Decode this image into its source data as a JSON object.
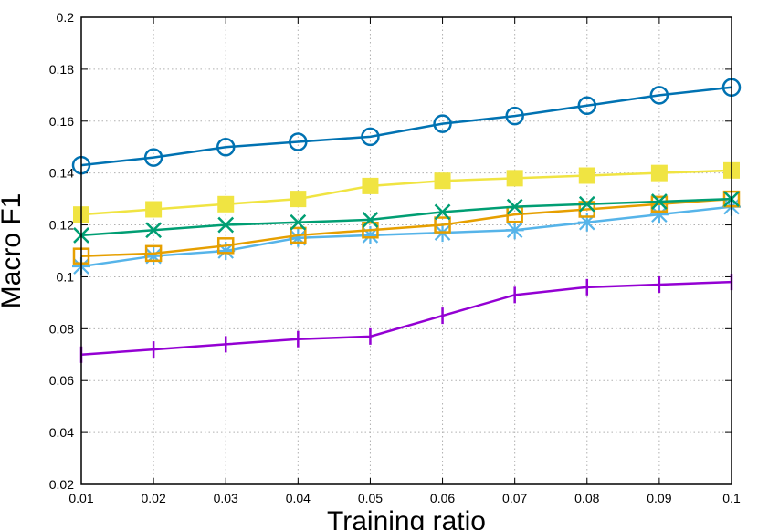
{
  "chart_data": {
    "type": "line",
    "xlabel": "Training ratio",
    "ylabel": "Macro F1",
    "xlim": [
      0.01,
      0.1
    ],
    "ylim": [
      0.02,
      0.2
    ],
    "grid": true,
    "x": [
      0.01,
      0.02,
      0.03,
      0.04,
      0.05,
      0.06,
      0.07,
      0.08,
      0.09,
      0.1
    ],
    "x_tick_labels": [
      "0.01",
      "0.02",
      "0.03",
      "0.04",
      "0.05",
      "0.06",
      "0.07",
      "0.08",
      "0.09",
      "0.1"
    ],
    "y_ticks": [
      0.02,
      0.04,
      0.06,
      0.08,
      0.1,
      0.12,
      0.14,
      0.16,
      0.18,
      0.2
    ],
    "y_tick_labels": [
      "0.02",
      "0.04",
      "0.06",
      "0.08",
      "0.1",
      "0.12",
      "0.14",
      "0.16",
      "0.18",
      "0.2"
    ],
    "series": [
      {
        "marker": "open-circle",
        "color": "#0072b2",
        "values": [
          0.143,
          0.146,
          0.15,
          0.152,
          0.154,
          0.159,
          0.162,
          0.166,
          0.17,
          0.173
        ]
      },
      {
        "marker": "filled-square",
        "color": "#f0e442",
        "values": [
          0.124,
          0.126,
          0.128,
          0.13,
          0.135,
          0.137,
          0.138,
          0.139,
          0.14,
          0.141
        ]
      },
      {
        "marker": "cross-x",
        "color": "#009e73",
        "values": [
          0.116,
          0.118,
          0.12,
          0.121,
          0.122,
          0.125,
          0.127,
          0.128,
          0.129,
          0.13
        ]
      },
      {
        "marker": "open-square",
        "color": "#e69f00",
        "values": [
          0.108,
          0.109,
          0.112,
          0.116,
          0.118,
          0.12,
          0.124,
          0.126,
          0.128,
          0.13
        ]
      },
      {
        "marker": "asterisk",
        "color": "#56b4e9",
        "values": [
          0.104,
          0.108,
          0.11,
          0.115,
          0.116,
          0.117,
          0.118,
          0.121,
          0.124,
          0.127
        ]
      },
      {
        "marker": "plus",
        "color": "#9400d3",
        "values": [
          0.07,
          0.072,
          0.074,
          0.076,
          0.077,
          0.085,
          0.093,
          0.096,
          0.097,
          0.098
        ]
      }
    ]
  }
}
